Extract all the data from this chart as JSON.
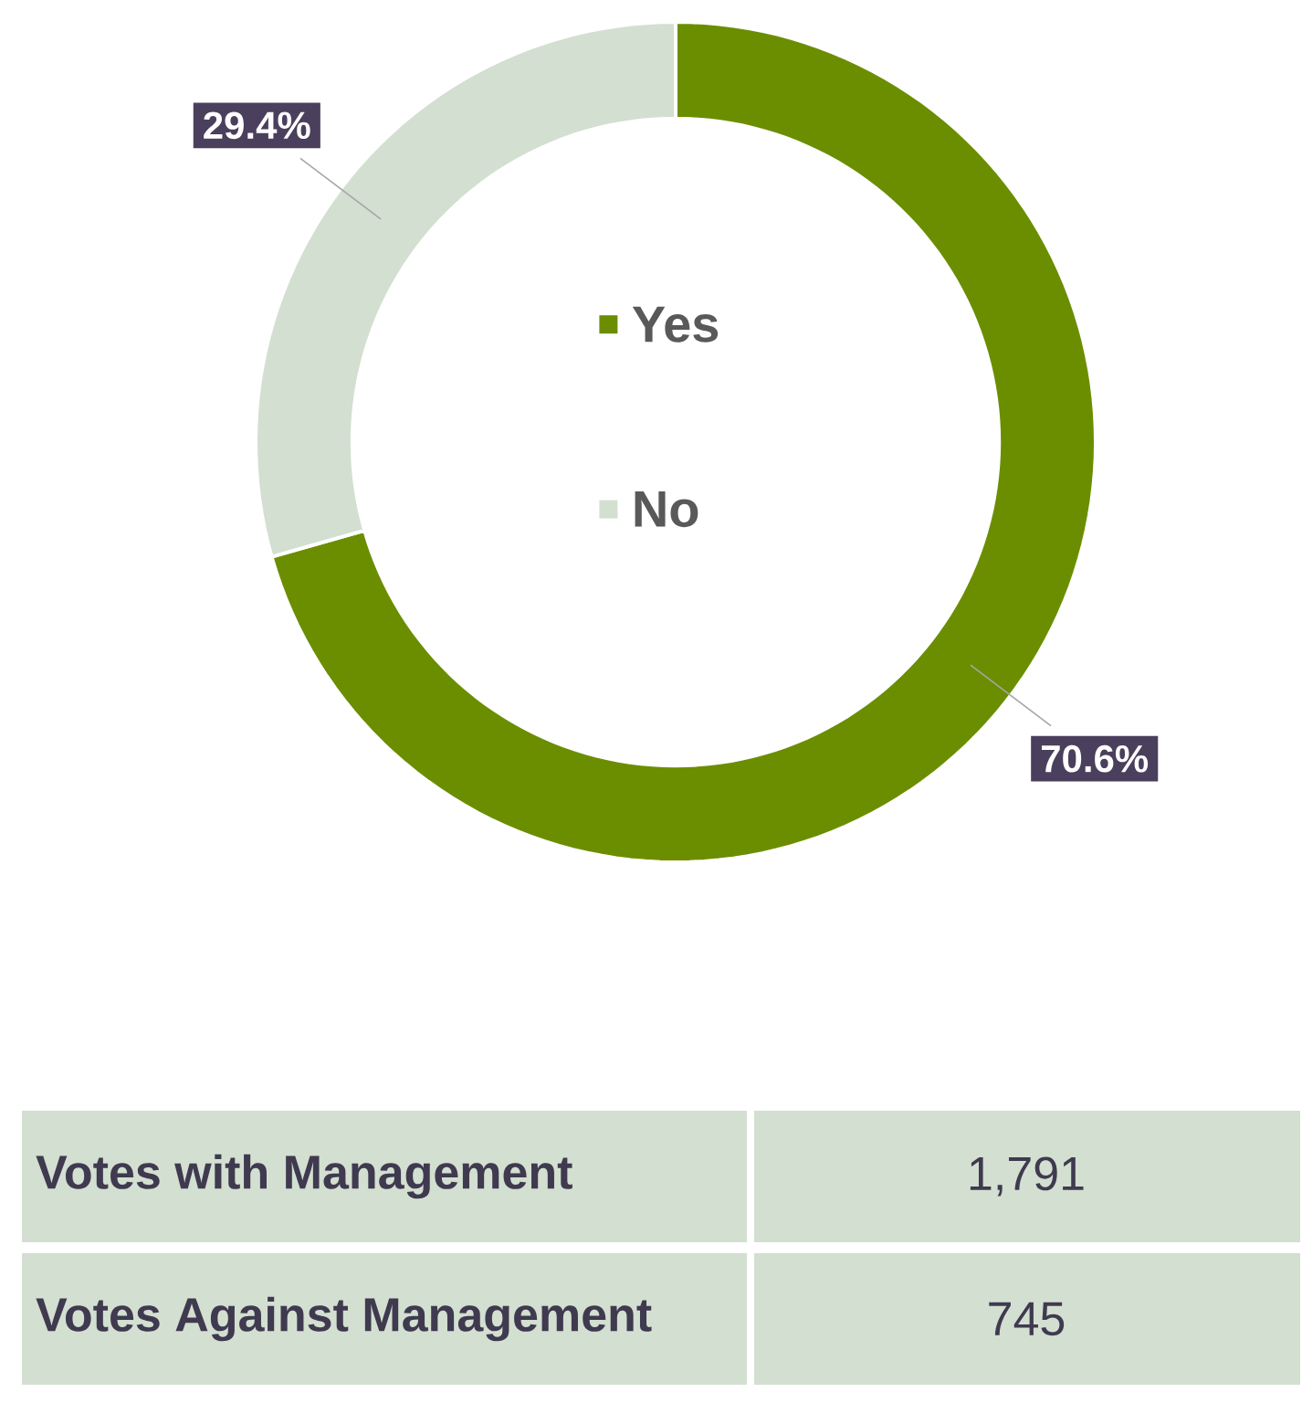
{
  "chart_data": {
    "type": "donut",
    "categories": [
      "Yes",
      "No"
    ],
    "values": [
      70.6,
      29.4
    ],
    "value_labels": [
      "70.6%",
      "29.4%"
    ],
    "colors": [
      "#6b8e00",
      "#d3dfd0"
    ],
    "legend": "center",
    "annotations": [
      "Votes with Management",
      "1,791",
      "Votes Against Management",
      "745"
    ]
  }
}
